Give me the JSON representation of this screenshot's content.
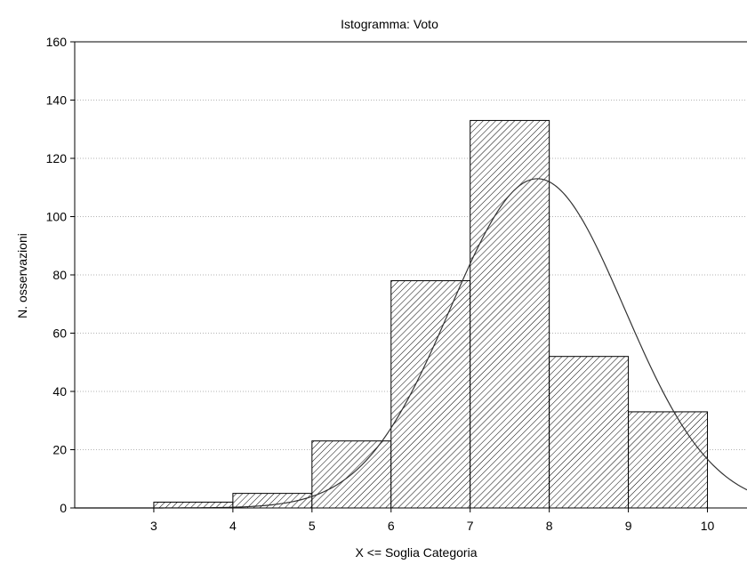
{
  "chart_data": {
    "type": "bar",
    "title": "Istogramma: Voto",
    "xlabel": "X <= Soglia Categoria",
    "ylabel": "N. osservazioni",
    "x_ticks": [
      "3",
      "4",
      "5",
      "6",
      "7",
      "8",
      "9",
      "10"
    ],
    "y_ticks": [
      "0",
      "20",
      "40",
      "60",
      "80",
      "100",
      "120",
      "140",
      "160"
    ],
    "xlim": [
      2.0,
      10.5
    ],
    "ylim": [
      0,
      160
    ],
    "bins": [
      {
        "from": 3,
        "to": 4,
        "value": 2
      },
      {
        "from": 4,
        "to": 5,
        "value": 5
      },
      {
        "from": 5,
        "to": 6,
        "value": 23
      },
      {
        "from": 6,
        "to": 7,
        "value": 78
      },
      {
        "from": 7,
        "to": 8,
        "value": 133
      },
      {
        "from": 8,
        "to": 9,
        "value": 52
      },
      {
        "from": 9,
        "to": 10,
        "value": 33
      }
    ],
    "normal_curve": {
      "peak": 113,
      "mean": 7.85,
      "sd": 1.1
    },
    "grid": true,
    "fill_pattern": "diagonal-hatch",
    "colors": {
      "bar_fill": "#ffffff",
      "hatch": "#000000",
      "curve": "#333333",
      "grid": "#9a9a9a"
    }
  }
}
